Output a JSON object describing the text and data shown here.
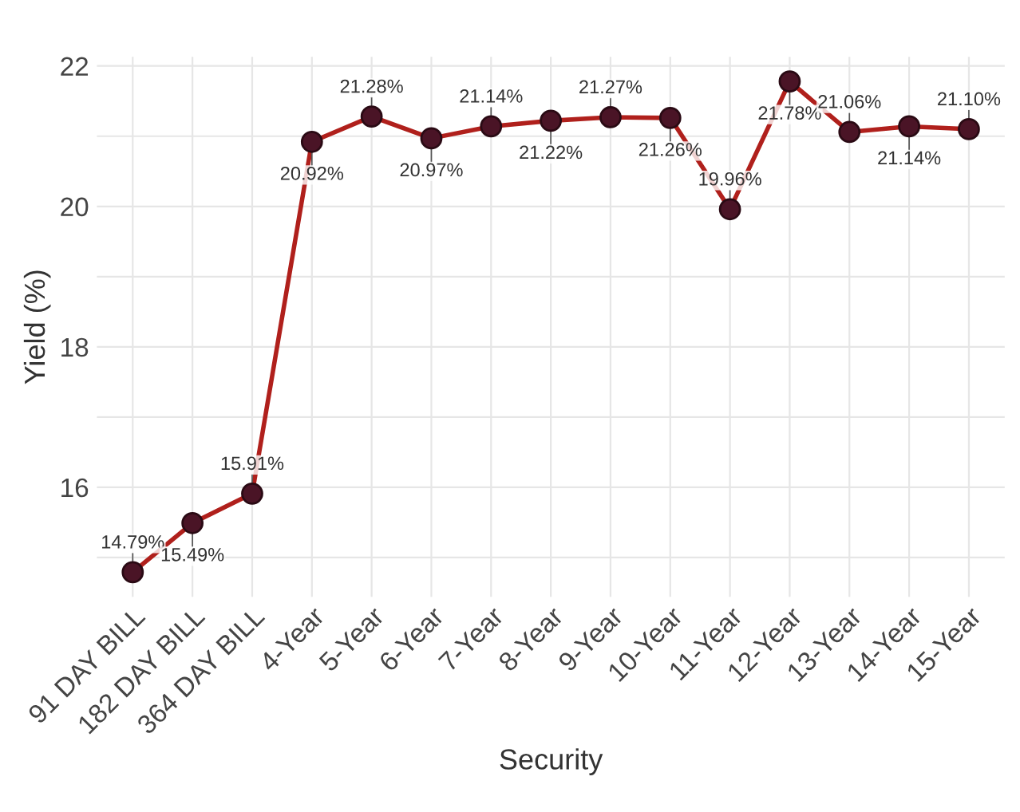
{
  "chart_data": {
    "type": "line",
    "xlabel": "Security",
    "ylabel": "Yield (%)",
    "categories": [
      "91 DAY BILL",
      "182 DAY BILL",
      "364 DAY BILL",
      "4-Year",
      "5-Year",
      "6-Year",
      "7-Year",
      "8-Year",
      "9-Year",
      "10-Year",
      "11-Year",
      "12-Year",
      "13-Year",
      "14-Year",
      "15-Year"
    ],
    "series": [
      {
        "color": "#b0201c",
        "values": [
          14.79,
          15.49,
          15.91,
          20.92,
          21.28,
          20.97,
          21.14,
          21.22,
          21.27,
          21.26,
          19.96,
          21.78,
          21.06,
          21.14,
          21.1
        ],
        "value_labels": [
          "14.79%",
          "15.49%",
          "15.91%",
          "20.92%",
          "21.28%",
          "20.97%",
          "21.14%",
          "21.22%",
          "21.27%",
          "21.26%",
          "19.96%",
          "21.78%",
          "21.06%",
          "21.14%",
          "21.10%"
        ]
      }
    ],
    "ylim": [
      14.44,
      22.13
    ],
    "yticks": [
      {
        "value": 15,
        "label": null
      },
      16,
      {
        "value": 17,
        "label": null
      },
      18,
      {
        "value": 19,
        "label": null
      },
      20,
      {
        "value": 21,
        "label": null
      },
      22
    ],
    "grid": true,
    "marker": "circle",
    "line_style": "solid",
    "legend": false
  }
}
